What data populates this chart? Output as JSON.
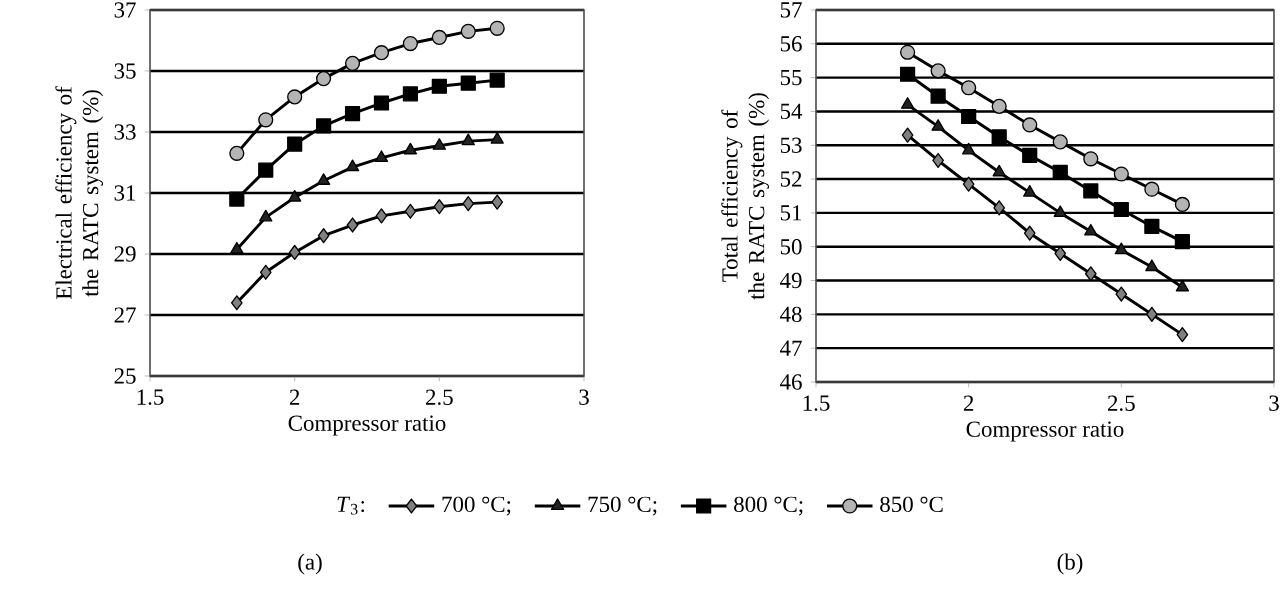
{
  "chart_data": [
    {
      "type": "line",
      "xlabel": "Compressor ratio",
      "ylabel": "Electrical efficiency of the RATC system (%)",
      "legend_title": "*T*$_{3}$:",
      "legend": "bottom",
      "grid": "y",
      "line_style": "solid",
      "xlim": [
        1.5,
        3
      ],
      "xticks": [
        1.5,
        2,
        2.5,
        3
      ],
      "ylim": [
        25,
        37
      ],
      "yticks": [
        25,
        27,
        29,
        31,
        33,
        35,
        37
      ],
      "annotations": [
        "(a)"
      ],
      "x": [
        1.8,
        1.9,
        2.0,
        2.1,
        2.2,
        2.3,
        2.4,
        2.5,
        2.6,
        2.7
      ],
      "series": [
        {
          "name": "700 °C;",
          "color": "#808080",
          "marker": "diamond",
          "values": [
            27.4,
            28.4,
            29.05,
            29.6,
            29.95,
            30.25,
            30.4,
            30.55,
            30.65,
            30.7
          ]
        },
        {
          "name": "750 °C;",
          "color": "#222222",
          "marker": "triangle",
          "values": [
            29.15,
            30.2,
            30.85,
            31.4,
            31.85,
            32.15,
            32.4,
            32.55,
            32.7,
            32.75
          ]
        },
        {
          "name": "800 °C;",
          "color": "#000000",
          "marker": "square",
          "values": [
            30.8,
            31.75,
            32.6,
            33.2,
            33.6,
            33.95,
            34.25,
            34.5,
            34.6,
            34.7
          ]
        },
        {
          "name": "850 °C",
          "color": "#b4b4b4",
          "marker": "circle",
          "values": [
            32.3,
            33.4,
            34.15,
            34.75,
            35.25,
            35.6,
            35.9,
            36.1,
            36.3,
            36.4
          ]
        }
      ]
    },
    {
      "type": "line",
      "xlabel": "Compressor ratio",
      "ylabel": "Total efficiency of the RATC system (%)",
      "grid": "y",
      "line_style": "solid",
      "xlim": [
        1.5,
        3
      ],
      "xticks": [
        1.5,
        2,
        2.5,
        3
      ],
      "ylim": [
        46,
        57
      ],
      "yticks": [
        46,
        47,
        48,
        49,
        50,
        51,
        52,
        53,
        54,
        55,
        56,
        57
      ],
      "annotations": [
        "(b)"
      ],
      "x": [
        1.8,
        1.9,
        2.0,
        2.1,
        2.2,
        2.3,
        2.4,
        2.5,
        2.6,
        2.7
      ],
      "series": [
        {
          "color": "#808080",
          "marker": "diamond",
          "values": [
            53.3,
            52.55,
            51.85,
            51.15,
            50.4,
            49.8,
            49.2,
            48.6,
            48.0,
            47.4
          ]
        },
        {
          "color": "#222222",
          "marker": "triangle",
          "values": [
            54.2,
            53.55,
            52.85,
            52.2,
            51.6,
            51.0,
            50.45,
            49.9,
            49.4,
            48.8
          ]
        },
        {
          "color": "#000000",
          "marker": "square",
          "values": [
            55.1,
            54.45,
            53.85,
            53.25,
            52.7,
            52.2,
            51.65,
            51.1,
            50.6,
            50.15
          ]
        },
        {
          "color": "#b4b4b4",
          "marker": "circle",
          "values": [
            55.75,
            55.2,
            54.7,
            54.15,
            53.6,
            53.1,
            52.6,
            52.15,
            51.7,
            51.25
          ]
        }
      ]
    }
  ]
}
